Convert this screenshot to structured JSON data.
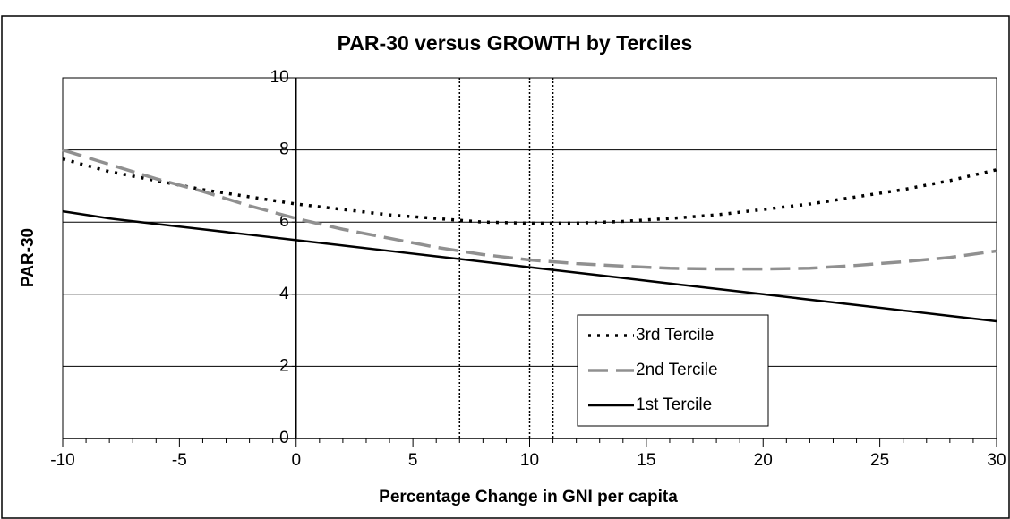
{
  "chart_data": {
    "type": "line",
    "title": "PAR-30 versus GROWTH by Terciles",
    "x_label": "Percentage Change in GNI per capita",
    "y_label": "PAR-30",
    "x": [
      -10,
      -8,
      -6,
      -4,
      -2,
      0,
      2,
      4,
      6,
      8,
      10,
      12,
      14,
      16,
      18,
      20,
      22,
      24,
      26,
      28,
      30
    ],
    "series": [
      {
        "name": "3rd Tercile",
        "color": "#000000",
        "style": "dotted",
        "values": [
          7.75,
          7.4,
          7.15,
          6.9,
          6.7,
          6.5,
          6.35,
          6.2,
          6.1,
          6.0,
          5.97,
          5.97,
          6.02,
          6.1,
          6.2,
          6.35,
          6.5,
          6.7,
          6.9,
          7.15,
          7.45
        ]
      },
      {
        "name": "2nd Tercile",
        "color": "#909090",
        "style": "dashed",
        "values": [
          8.0,
          7.6,
          7.2,
          6.85,
          6.45,
          6.1,
          5.8,
          5.55,
          5.3,
          5.1,
          4.95,
          4.85,
          4.78,
          4.72,
          4.7,
          4.7,
          4.72,
          4.8,
          4.9,
          5.02,
          5.2
        ]
      },
      {
        "name": "1st Tercile",
        "color": "#000000",
        "style": "solid",
        "values": [
          6.3,
          6.1,
          5.95,
          5.8,
          5.65,
          5.5,
          5.35,
          5.2,
          5.05,
          4.9,
          4.75,
          4.6,
          4.45,
          4.3,
          4.15,
          4.0,
          3.85,
          3.7,
          3.55,
          3.4,
          3.25
        ]
      }
    ],
    "vlines": [
      7,
      10,
      11
    ],
    "xlim": [
      -10,
      30
    ],
    "xticks": [
      -10,
      -5,
      0,
      5,
      10,
      15,
      20,
      25,
      30
    ],
    "ylim": [
      0,
      10
    ],
    "yticks": [
      0,
      2,
      4,
      6,
      8,
      10
    ],
    "grid": true,
    "legend": "lower-center"
  }
}
